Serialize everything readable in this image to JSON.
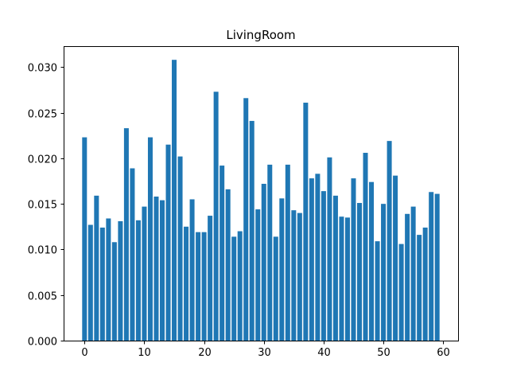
{
  "chart_data": {
    "type": "bar",
    "title": "LivingRoom",
    "xlabel": "",
    "ylabel": "",
    "xlim": [
      -3.5,
      62.5
    ],
    "ylim": [
      0,
      0.0323
    ],
    "x_ticks": [
      0,
      10,
      20,
      30,
      40,
      50,
      60
    ],
    "x_tick_labels": [
      "0",
      "10",
      "20",
      "30",
      "40",
      "50",
      "60"
    ],
    "y_ticks": [
      0,
      0.005,
      0.01,
      0.015,
      0.02,
      0.025,
      0.03
    ],
    "y_tick_labels": [
      "0.000",
      "0.005",
      "0.010",
      "0.015",
      "0.020",
      "0.025",
      "0.030"
    ],
    "bar_color": "#1f77b4",
    "grid": false,
    "x": [
      0,
      1,
      2,
      3,
      4,
      5,
      6,
      7,
      8,
      9,
      10,
      11,
      12,
      13,
      14,
      15,
      16,
      17,
      18,
      19,
      20,
      21,
      22,
      23,
      24,
      25,
      26,
      27,
      28,
      29,
      30,
      31,
      32,
      33,
      34,
      35,
      36,
      37,
      38,
      39,
      40,
      41,
      42,
      43,
      44,
      45,
      46,
      47,
      48,
      49,
      50,
      51,
      52,
      53,
      54,
      55,
      56,
      57,
      58,
      59
    ],
    "values": [
      0.0223,
      0.0127,
      0.0159,
      0.0124,
      0.0134,
      0.0108,
      0.0131,
      0.0233,
      0.0189,
      0.0132,
      0.0147,
      0.0223,
      0.0158,
      0.0154,
      0.0215,
      0.0308,
      0.0202,
      0.0125,
      0.0155,
      0.0119,
      0.0119,
      0.0137,
      0.0273,
      0.0192,
      0.0166,
      0.0114,
      0.012,
      0.0266,
      0.0241,
      0.0144,
      0.0172,
      0.0193,
      0.0114,
      0.0156,
      0.0193,
      0.0143,
      0.014,
      0.0261,
      0.0178,
      0.0183,
      0.0164,
      0.0201,
      0.0159,
      0.0136,
      0.0135,
      0.0178,
      0.0151,
      0.0206,
      0.0174,
      0.0109,
      0.015,
      0.0219,
      0.0181,
      0.0106,
      0.0139,
      0.0147,
      0.0116,
      0.0124,
      0.0163,
      0.0161
    ]
  }
}
